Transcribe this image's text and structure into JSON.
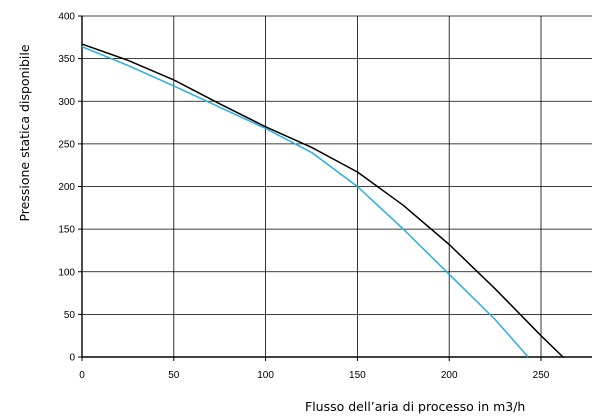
{
  "chart_data": {
    "type": "line",
    "title": "",
    "xlabel": "Flusso dell’aria di processo in m3/h",
    "ylabel": "Pressione statica disponibile",
    "xlim": [
      0,
      280
    ],
    "ylim": [
      0,
      400
    ],
    "x_ticks": [
      "0",
      "50",
      "100",
      "150",
      "200",
      "250"
    ],
    "y_ticks": [
      "0",
      "50",
      "100",
      "150",
      "200",
      "250",
      "300",
      "350",
      "400"
    ],
    "grid": true,
    "legend": "none",
    "series": [
      {
        "color": "#000000",
        "x": [
          0,
          25,
          50,
          75,
          100,
          125,
          150,
          175,
          200,
          225,
          250,
          262
        ],
        "y": [
          367,
          348,
          325,
          297,
          270,
          246,
          217,
          178,
          132,
          80,
          25,
          0
        ]
      },
      {
        "color": "#29aee0",
        "x": [
          0,
          25,
          50,
          75,
          100,
          125,
          150,
          175,
          200,
          225,
          243
        ],
        "y": [
          364,
          342,
          318,
          293,
          268,
          240,
          200,
          150,
          97,
          44,
          0
        ]
      }
    ]
  }
}
